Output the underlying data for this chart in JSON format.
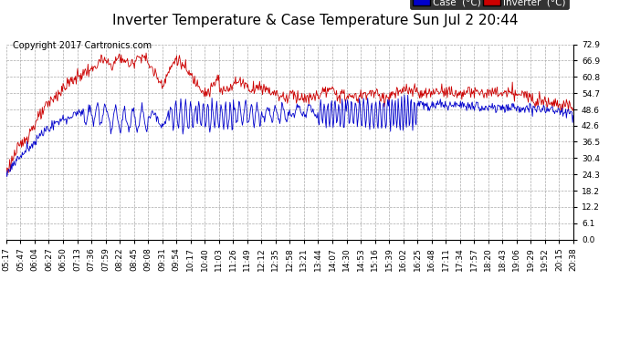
{
  "title": "Inverter Temperature & Case Temperature Sun Jul 2 20:44",
  "copyright": "Copyright 2017 Cartronics.com",
  "yticks": [
    0.0,
    6.1,
    12.2,
    18.2,
    24.3,
    30.4,
    36.5,
    42.6,
    48.6,
    54.7,
    60.8,
    66.9,
    72.9
  ],
  "ylim": [
    0.0,
    72.9
  ],
  "xtick_labels": [
    "05:17",
    "05:47",
    "06:04",
    "06:27",
    "06:50",
    "07:13",
    "07:36",
    "07:59",
    "08:22",
    "08:45",
    "09:08",
    "09:31",
    "09:54",
    "10:17",
    "10:40",
    "11:03",
    "11:26",
    "11:49",
    "12:12",
    "12:35",
    "12:58",
    "13:21",
    "13:44",
    "14:07",
    "14:30",
    "14:53",
    "15:16",
    "15:39",
    "16:02",
    "16:25",
    "16:48",
    "17:11",
    "17:34",
    "17:57",
    "18:20",
    "18:43",
    "19:06",
    "19:29",
    "19:52",
    "20:15",
    "20:38"
  ],
  "case_color": "#0000cc",
  "inverter_color": "#cc0000",
  "bg_color": "#ffffff",
  "plot_bg_color": "#ffffff",
  "grid_color": "#aaaaaa",
  "legend_case_bg": "#0000cc",
  "legend_inverter_bg": "#cc0000",
  "title_fontsize": 11,
  "copyright_fontsize": 7,
  "tick_fontsize": 6.5,
  "legend_fontsize": 7.5
}
